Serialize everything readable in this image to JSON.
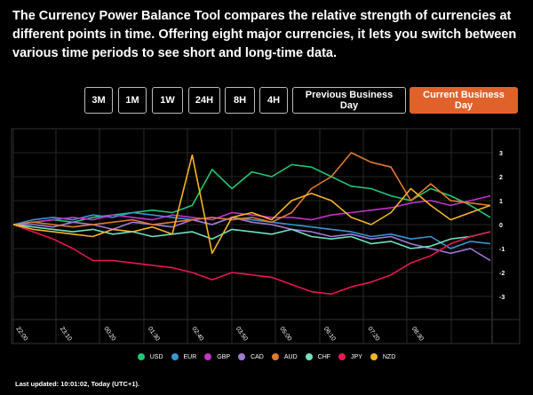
{
  "intro": "The Currency Power Balance Tool compares the relative strength of currencies at different points in time. Offering eight major currencies, it lets you switch between various time periods to see short and long-time data.",
  "periods": [
    "3M",
    "1M",
    "1W",
    "24H",
    "8H",
    "4H",
    "Previous Business Day",
    "Current Business Day"
  ],
  "active_period": "Current Business Day",
  "accent": "#e0622a",
  "last_updated": "Last updated: 10:01:02, Today (UTC+1).",
  "chart_data": {
    "type": "line",
    "x_ticks": [
      "22:00",
      "23:10",
      "00:20",
      "01:30",
      "02:40",
      "03:50",
      "05:00",
      "06:10",
      "07:20",
      "08:30"
    ],
    "y_ticks": [
      3,
      2,
      1,
      0,
      -1,
      -2,
      -3
    ],
    "ylim": [
      -3.5,
      3.5
    ],
    "grid": true,
    "legend": "bottom",
    "series": [
      {
        "name": "USD",
        "color": "#1fc876",
        "values": [
          0,
          0.1,
          0.2,
          0.1,
          0.3,
          0.4,
          0.5,
          0.6,
          0.5,
          0.8,
          2.3,
          1.5,
          2.2,
          2.0,
          2.5,
          2.4,
          2.0,
          1.6,
          1.5,
          1.2,
          1.0,
          1.5,
          1.2,
          0.8,
          0.3
        ]
      },
      {
        "name": "EUR",
        "color": "#3a95d0",
        "values": [
          0,
          0.2,
          0.3,
          0.2,
          0.4,
          0.3,
          0.5,
          0.4,
          0.3,
          0.2,
          0,
          0.3,
          0.2,
          0.1,
          0,
          -0.1,
          -0.2,
          -0.3,
          -0.5,
          -0.4,
          -0.6,
          -0.5,
          -1.0,
          -0.7,
          -0.8
        ]
      },
      {
        "name": "GBP",
        "color": "#c233c8",
        "values": [
          0,
          0.1,
          0.2,
          0.3,
          0.2,
          0.4,
          0.3,
          0.2,
          0.4,
          0.3,
          0.2,
          0.5,
          0.4,
          0.3,
          0.3,
          0.2,
          0.4,
          0.5,
          0.6,
          0.7,
          0.9,
          1.0,
          0.8,
          1.0,
          1.2
        ]
      },
      {
        "name": "CAD",
        "color": "#a07ad8",
        "values": [
          0,
          0,
          -0.1,
          0.1,
          0,
          -0.2,
          0.1,
          0,
          -0.1,
          0.2,
          0,
          0.3,
          0.1,
          0,
          -0.2,
          -0.3,
          -0.5,
          -0.4,
          -0.6,
          -0.5,
          -0.8,
          -1.0,
          -1.2,
          -1.0,
          -1.5
        ]
      },
      {
        "name": "AUD",
        "color": "#e07b2d",
        "values": [
          0,
          0.1,
          0,
          -0.1,
          0,
          0.1,
          0.2,
          0,
          0.1,
          0.2,
          0.3,
          0.2,
          0.3,
          0.1,
          0.5,
          1.5,
          2.0,
          3.0,
          2.6,
          2.4,
          1.0,
          1.7,
          1.0,
          0.9,
          0.8
        ]
      },
      {
        "name": "CHF",
        "color": "#6fe0c0",
        "values": [
          0,
          -0.1,
          -0.2,
          -0.3,
          -0.2,
          -0.4,
          -0.3,
          -0.5,
          -0.4,
          -0.3,
          -0.6,
          -0.2,
          -0.3,
          -0.4,
          -0.2,
          -0.5,
          -0.6,
          -0.5,
          -0.8,
          -0.7,
          -1.0,
          -0.9,
          -0.6,
          -0.5,
          -0.3
        ]
      },
      {
        "name": "JPY",
        "color": "#e8174f",
        "values": [
          0,
          -0.3,
          -0.6,
          -1.0,
          -1.5,
          -1.5,
          -1.6,
          -1.7,
          -1.8,
          -2.0,
          -2.3,
          -2.0,
          -2.1,
          -2.2,
          -2.5,
          -2.8,
          -2.9,
          -2.6,
          -2.4,
          -2.1,
          -1.6,
          -1.3,
          -0.8,
          -0.5,
          -0.3
        ]
      },
      {
        "name": "NZD",
        "color": "#f5b324",
        "values": [
          0,
          -0.2,
          -0.3,
          -0.4,
          -0.5,
          -0.2,
          -0.3,
          -0.1,
          -0.4,
          2.9,
          -1.2,
          0.3,
          0.5,
          0.2,
          1.0,
          1.3,
          1.0,
          0.3,
          0.0,
          0.5,
          1.5,
          0.8,
          0.2,
          0.5,
          0.8
        ]
      }
    ]
  }
}
